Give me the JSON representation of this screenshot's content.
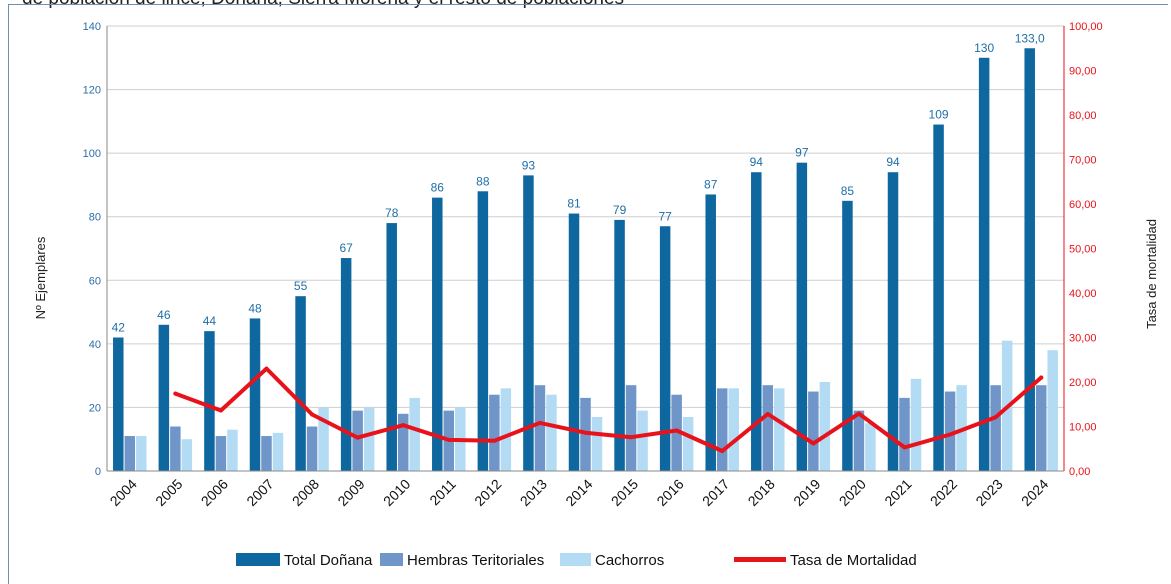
{
  "header_text": "de población de lince, Doñana, Sierra Morena y el resto de poblaciones",
  "chart_data": {
    "type": "bar",
    "categories": [
      "2004",
      "2005",
      "2006",
      "2007",
      "2008",
      "2009",
      "2010",
      "2011",
      "2012",
      "2013",
      "2014",
      "2015",
      "2016",
      "2017",
      "2018",
      "2019",
      "2020",
      "2021",
      "2022",
      "2023",
      "2024"
    ],
    "series": [
      {
        "name": "Total Doñana",
        "kind": "bar",
        "axis": "left",
        "color": "#0f67a0",
        "values": [
          42,
          46,
          44,
          48,
          55,
          67,
          78,
          86,
          88,
          93,
          81,
          79,
          77,
          87,
          94,
          97,
          85,
          94,
          109,
          130,
          133
        ]
      },
      {
        "name": "Hembras Teritoriales",
        "kind": "bar",
        "axis": "left",
        "color": "#7096c9",
        "values": [
          11,
          14,
          11,
          11,
          14,
          19,
          18,
          19,
          24,
          27,
          23,
          27,
          24,
          26,
          27,
          25,
          19,
          23,
          25,
          27,
          27
        ]
      },
      {
        "name": "Cachorros",
        "kind": "bar",
        "axis": "left",
        "color": "#b3dcf4",
        "values": [
          11,
          10,
          13,
          12,
          20,
          20,
          23,
          20,
          26,
          24,
          17,
          19,
          17,
          26,
          26,
          28,
          15,
          29,
          27,
          41,
          38
        ]
      },
      {
        "name": "Tasa de Mortalidad",
        "kind": "line",
        "axis": "right",
        "color": "#e8121a",
        "values": [
          null,
          17.4,
          13.6,
          23.0,
          12.7,
          7.5,
          10.3,
          7.0,
          6.8,
          10.8,
          8.6,
          7.6,
          9.1,
          4.5,
          12.8,
          6.2,
          12.9,
          5.3,
          8.2,
          12.1,
          21.0
        ]
      }
    ],
    "data_labels": [
      "42",
      "46",
      "44",
      "48",
      "55",
      "67",
      "78",
      "86",
      "88",
      "93",
      "81",
      "79",
      "77",
      "87",
      "94",
      "97",
      "85",
      "94",
      "109",
      "130",
      "133,0"
    ],
    "ylabel": "Nº Ejemplares",
    "y2label": "Tasa de mortalidad",
    "ylim": [
      0,
      140
    ],
    "yticks": [
      "0",
      "20",
      "40",
      "60",
      "80",
      "100",
      "120",
      "140"
    ],
    "y2lim": [
      0,
      100
    ],
    "y2ticks": [
      "0,00",
      "10,00",
      "20,00",
      "30,00",
      "40,00",
      "50,00",
      "60,00",
      "70,00",
      "80,00",
      "90,00",
      "100,00"
    ],
    "grid": true,
    "legend": "bottom"
  }
}
